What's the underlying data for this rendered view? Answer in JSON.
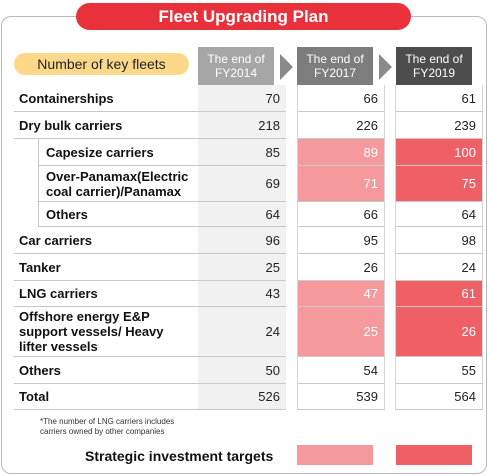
{
  "title": "Fleet Upgrading Plan",
  "row_header": "Number of key fleets",
  "columns": [
    "The end of FY2014",
    "The end of FY2017",
    "The end of FY2019"
  ],
  "rows": [
    {
      "label": "Containerships",
      "values": [
        "70",
        "66",
        "61"
      ]
    },
    {
      "label": "Dry bulk carriers",
      "values": [
        "218",
        "226",
        "239"
      ]
    },
    {
      "label": "Capesize carriers",
      "values": [
        "85",
        "89",
        "100"
      ]
    },
    {
      "label": "Over-Panamax(Electric coal carrier)/Panamax",
      "values": [
        "69",
        "71",
        "75"
      ]
    },
    {
      "label": "Others",
      "values": [
        "64",
        "66",
        "64"
      ]
    },
    {
      "label": "Car carriers",
      "values": [
        "96",
        "95",
        "98"
      ]
    },
    {
      "label": "Tanker",
      "values": [
        "25",
        "26",
        "24"
      ]
    },
    {
      "label": "LNG carriers",
      "values": [
        "43",
        "47",
        "61"
      ]
    },
    {
      "label": "Offshore energy E&P support vessels/ Heavy lifter vessels",
      "values": [
        "24",
        "25",
        "26"
      ]
    },
    {
      "label": "Others",
      "values": [
        "50",
        "54",
        "55"
      ]
    },
    {
      "label": "Total",
      "values": [
        "526",
        "539",
        "564"
      ]
    }
  ],
  "footnote": "*The number of LNG carriers includes carriers owned by other companies",
  "legend": "Strategic investment targets",
  "colors": {
    "title": "#e8313a",
    "pill": "#fcd98a",
    "target_2017": "#f5999c",
    "target_2019": "#ef5f66",
    "hdr_2014": "#a6a6a6",
    "hdr_2017": "#7d7d7d",
    "hdr_2019": "#4d4d4d"
  }
}
